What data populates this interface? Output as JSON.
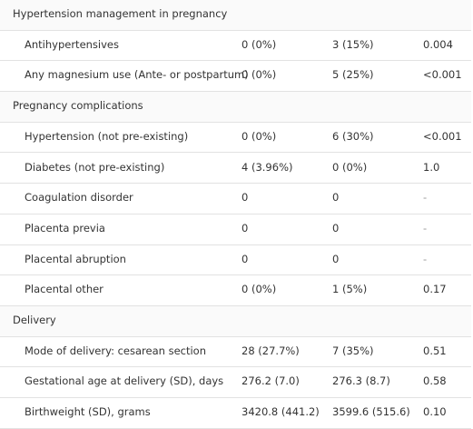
{
  "table": {
    "sections": [
      {
        "title": "Hypertension management in pregnancy",
        "rows": [
          [
            "Antihypertensives",
            "0 (0%)",
            "3 (15%)",
            "0.004"
          ],
          [
            "Any magnesium use (Ante- or postpartum)",
            "0 (0%)",
            "5 (25%)",
            "<0.001"
          ]
        ]
      },
      {
        "title": "Pregnancy complications",
        "rows": [
          [
            "Hypertension (not pre-existing)",
            "0 (0%)",
            "6 (30%)",
            "<0.001"
          ],
          [
            "Diabetes (not pre-existing)",
            "4 (3.96%)",
            "0 (0%)",
            "1.0"
          ],
          [
            "Coagulation disorder",
            "0",
            "0",
            "-"
          ],
          [
            "Placenta previa",
            "0",
            "0",
            "-"
          ],
          [
            "Placental abruption",
            "0",
            "0",
            "-"
          ],
          [
            "Placental other",
            "0 (0%)",
            "1 (5%)",
            "0.17"
          ]
        ]
      },
      {
        "title": "Delivery",
        "rows": [
          [
            "Mode of delivery: cesarean section",
            "28 (27.7%)",
            "7 (35%)",
            "0.51"
          ],
          [
            "Gestational age at delivery (SD), days",
            "276.2 (7.0)",
            "276.3 (8.7)",
            "0.58"
          ],
          [
            "Birthweight (SD), grams",
            "3420.8 (441.2)",
            "3599.6 (515.6)",
            "0.10"
          ]
        ]
      }
    ]
  }
}
